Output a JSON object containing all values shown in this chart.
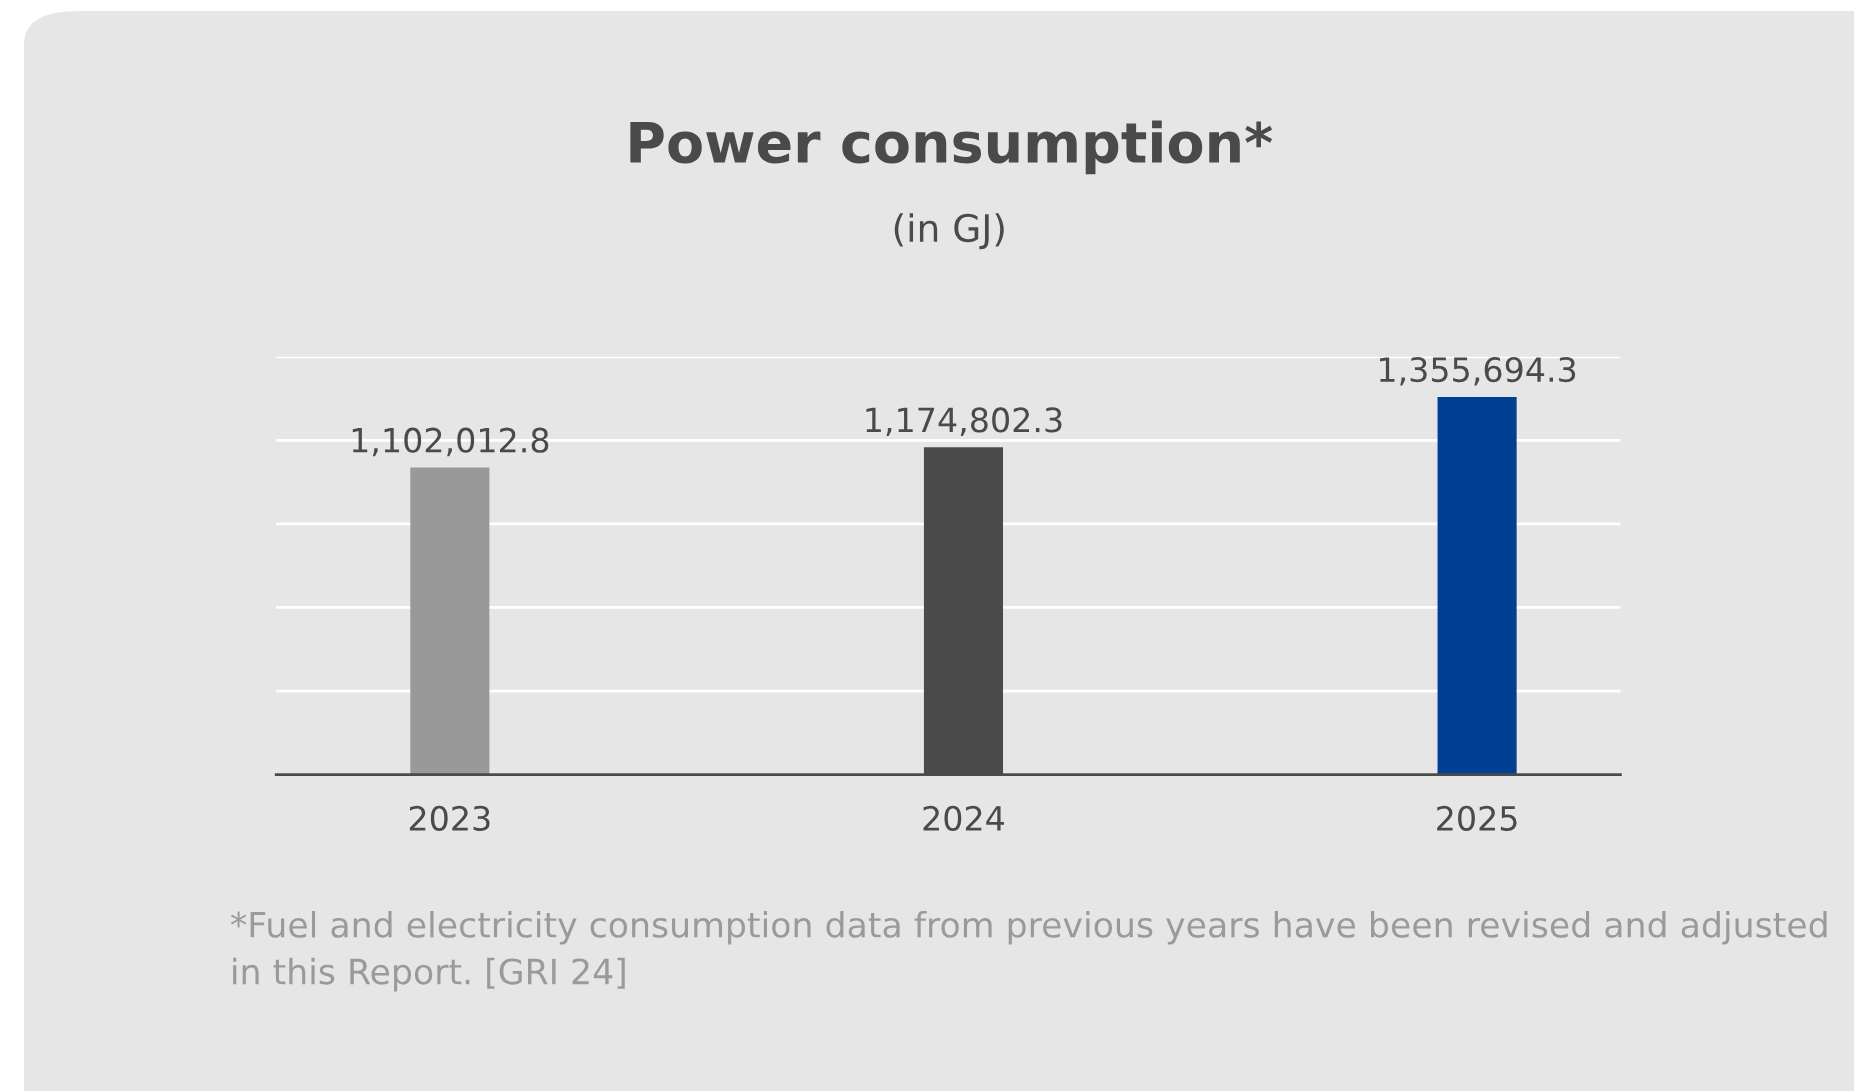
{
  "chart_data": {
    "type": "bar",
    "title": "Power consumption*",
    "subtitle": "(in GJ)",
    "categories": [
      "2023",
      "2024",
      "2025"
    ],
    "values": [
      1102012.8,
      1174802.3,
      1355694.3
    ],
    "colors": [
      "#999999",
      "#4a4a4a",
      "#003f91"
    ],
    "value_labels": [
      "1,102,012.8",
      "1,174,802.3",
      "1,355,694.3"
    ],
    "tick_labels": "x",
    "grid": "y",
    "annotations": [
      "*Fuel and electricity consumption data from previous years have been revised and adjusted in this Report. [GRI 24]"
    ]
  }
}
